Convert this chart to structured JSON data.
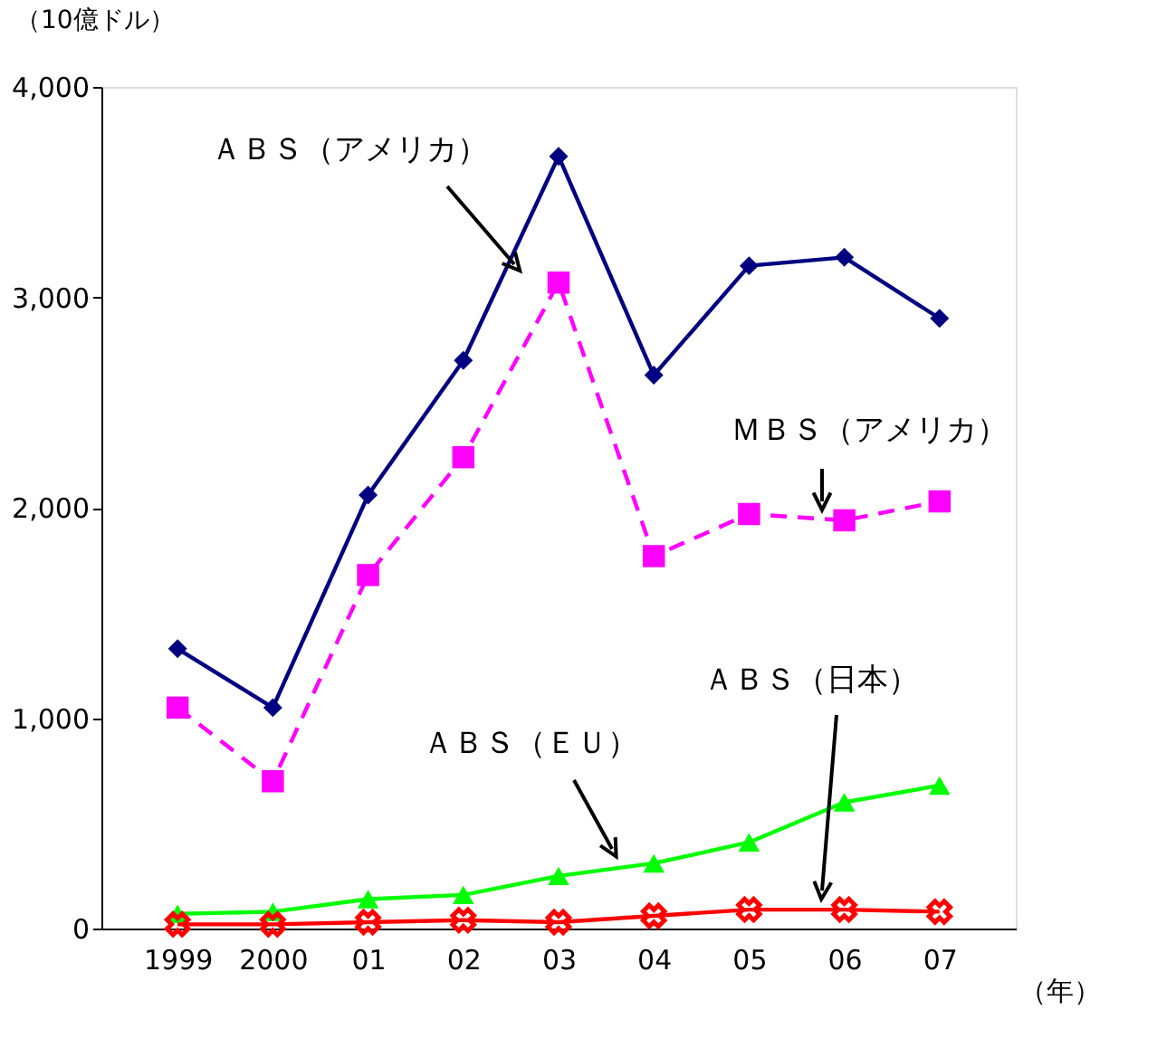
{
  "chart_data": {
    "type": "line",
    "ylabel": "（10億ドル）",
    "xlabel": "（年）",
    "categories": [
      "1999",
      "2000",
      "01",
      "02",
      "03",
      "04",
      "05",
      "06",
      "07"
    ],
    "ylim": [
      0,
      4000
    ],
    "yticks": [
      {
        "value": 0,
        "label": "0"
      },
      {
        "value": 1000,
        "label": "1,000"
      },
      {
        "value": 2000,
        "label": "2,000"
      },
      {
        "value": 3000,
        "label": "3,000"
      },
      {
        "value": 4000,
        "label": "4,000"
      }
    ],
    "grid": false,
    "legend": false,
    "series": [
      {
        "name": "ＡＢＳ（アメリカ）",
        "color": "#000080",
        "marker": "diamond",
        "line_style": "solid",
        "values": [
          1330,
          1050,
          2060,
          2700,
          3670,
          2630,
          3150,
          3190,
          2900
        ]
      },
      {
        "name": "ＭＢＳ（アメリカ）",
        "color": "#ff00ff",
        "marker": "square",
        "line_style": "dashed",
        "values": [
          1050,
          700,
          1680,
          2240,
          3070,
          1770,
          1970,
          1940,
          2030
        ]
      },
      {
        "name": "ＡＢＳ（ＥＵ）",
        "color": "#00ff00",
        "marker": "triangle",
        "line_style": "solid",
        "values": [
          70,
          80,
          140,
          160,
          250,
          310,
          410,
          600,
          680
        ]
      },
      {
        "name": "ＡＢＳ（日本）",
        "color": "#ff0000",
        "marker": "cross",
        "line_style": "solid",
        "values": [
          20,
          20,
          30,
          40,
          30,
          60,
          90,
          90,
          80
        ]
      }
    ]
  }
}
